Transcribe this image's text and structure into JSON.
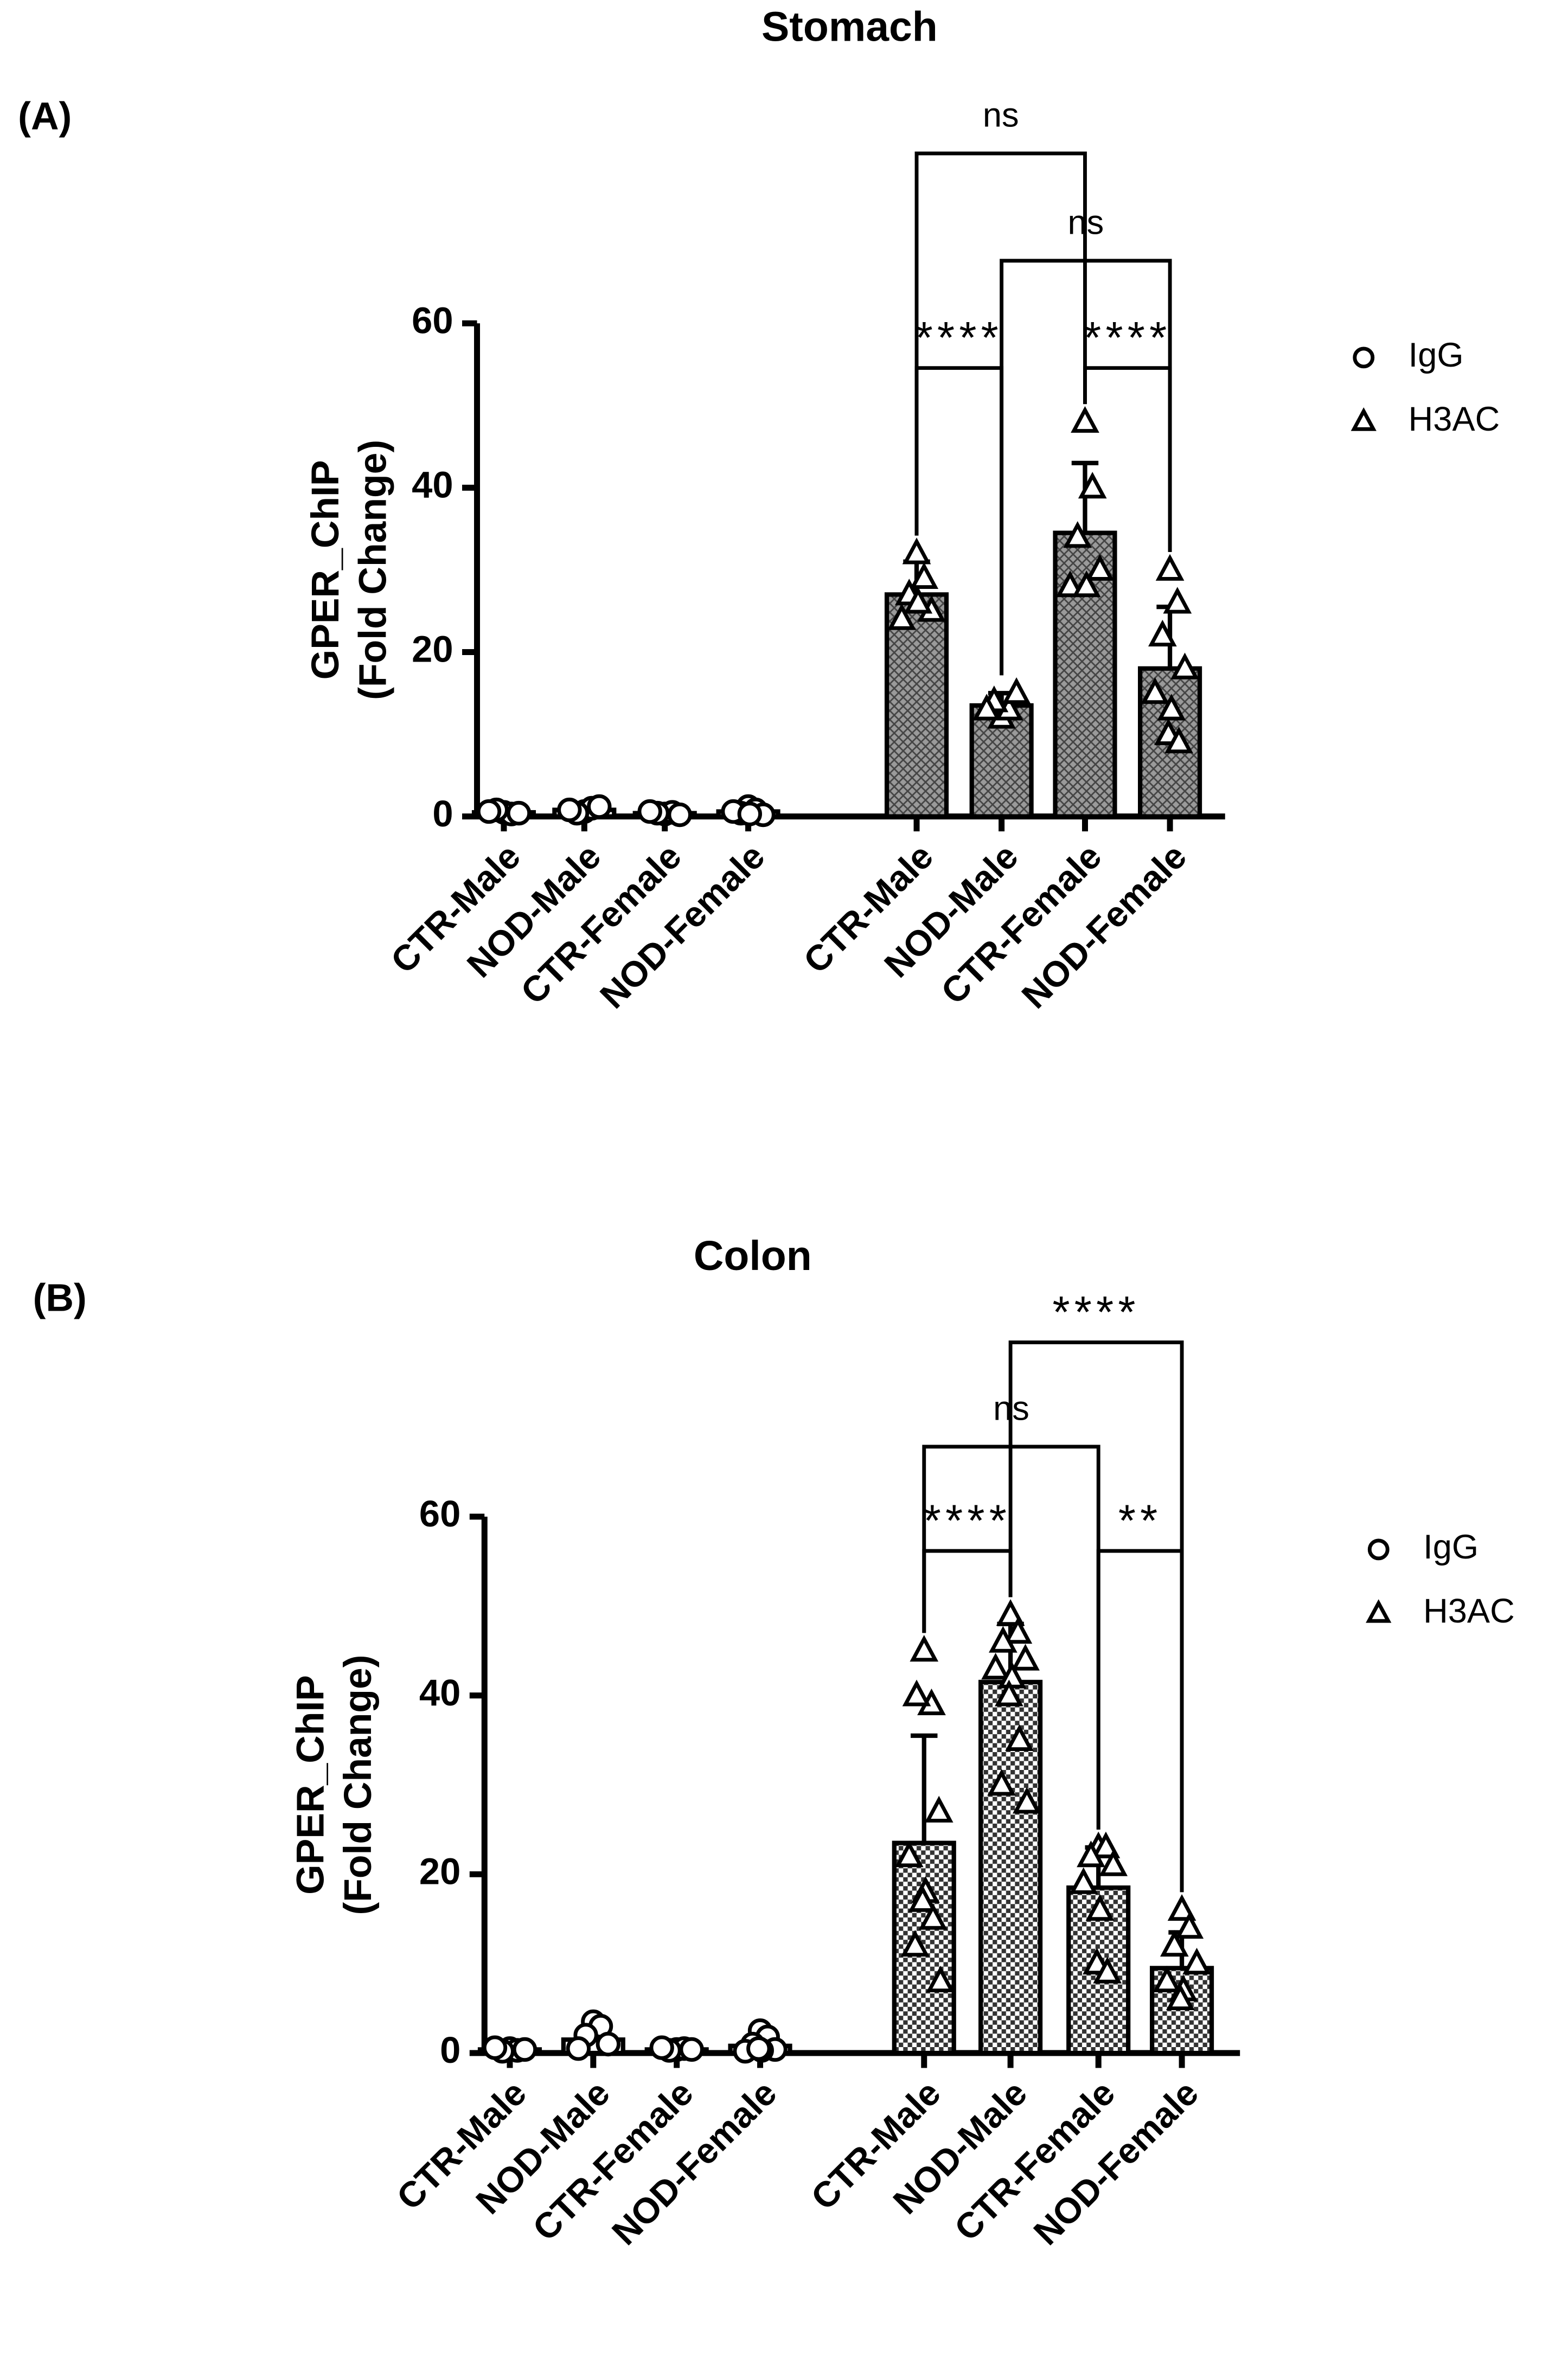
{
  "chart_data": [
    {
      "type": "bar",
      "panel": "(A)",
      "title": "Stomach",
      "ylabel": [
        "GPER_ChIP",
        "(Fold Change)"
      ],
      "categories": [
        "CTR-Male",
        "NOD-Male",
        "CTR-Female",
        "NOD-Female",
        "CTR-Male",
        "NOD-Male",
        "CTR-Female",
        "NOD-Female"
      ],
      "ylim": [
        0,
        60
      ],
      "yticks": [
        0,
        20,
        40,
        60
      ],
      "series": [
        {
          "name": "IgG",
          "marker": "circle",
          "color": "#ffffff",
          "values": [
            0.5,
            0.8,
            0.4,
            0.6,
            null,
            null,
            null,
            null
          ],
          "errors": [
            null,
            null,
            null,
            null,
            null,
            null,
            null,
            null
          ],
          "points": [
            [
              0.5,
              0.3,
              0.8,
              0.4,
              0.6
            ],
            [
              0.6,
              1.0,
              0.4,
              1.2,
              0.8
            ],
            [
              0.3,
              0.5,
              0.4,
              0.2,
              0.6
            ],
            [
              1.2,
              0.8,
              0.4,
              0.2,
              0.6,
              0.3
            ],
            [],
            [],
            [],
            []
          ]
        },
        {
          "name": "H3AC",
          "marker": "triangle",
          "color": "#9a9a9a",
          "values": [
            null,
            null,
            null,
            null,
            27,
            13.5,
            34.5,
            18
          ],
          "errors": [
            null,
            null,
            null,
            null,
            4,
            1.5,
            8.5,
            7.5
          ],
          "points": [
            [],
            [],
            [],
            [],
            [
              32,
              29,
              27,
              25,
              24,
              26
            ],
            [
              12,
              13,
              14,
              15,
              13
            ],
            [
              48,
              40,
              34,
              30,
              28,
              28
            ],
            [
              30,
              26,
              22,
              18,
              15,
              13,
              10,
              9
            ]
          ]
        }
      ],
      "significance": [
        {
          "label": "****",
          "from": 4,
          "to": 5
        },
        {
          "label": "****",
          "from": 6,
          "to": 7
        },
        {
          "label": "ns",
          "from": 5,
          "to": 7
        },
        {
          "label": "ns",
          "from": 4,
          "to": 6
        }
      ]
    },
    {
      "type": "bar",
      "panel": "(B)",
      "title": "Colon",
      "ylabel": [
        "GPER_ChIP",
        "(Fold Change)"
      ],
      "categories": [
        "CTR-Male",
        "NOD-Male",
        "CTR-Female",
        "NOD-Female",
        "CTR-Male",
        "NOD-Male",
        "CTR-Female",
        "NOD-Female"
      ],
      "ylim": [
        0,
        60
      ],
      "yticks": [
        0,
        20,
        40,
        60
      ],
      "series": [
        {
          "name": "IgG",
          "marker": "circle",
          "color": "#ffffff",
          "values": [
            0.4,
            1.5,
            0.4,
            0.8,
            null,
            null,
            null,
            null
          ],
          "errors": [
            null,
            null,
            null,
            null,
            null,
            null,
            null,
            null
          ],
          "points": [
            [
              0.5,
              0.3,
              0.2,
              0.4,
              0.6
            ],
            [
              3.5,
              3,
              2,
              1,
              0.5
            ],
            [
              0.4,
              0.5,
              0.3,
              0.4,
              0.6
            ],
            [
              2.5,
              1.8,
              1,
              0.4,
              0.2,
              0.3,
              0.5
            ]
          ]
        },
        {
          "name": "H3AC",
          "marker": "triangle",
          "color": "#9a9a9a",
          "values": [
            null,
            null,
            null,
            null,
            23.5,
            41.5,
            18.5,
            9.5
          ],
          "errors": [
            null,
            null,
            null,
            null,
            12,
            6.5,
            4.5,
            4
          ],
          "points": [
            [],
            [],
            [],
            [],
            [
              45,
              39,
              40,
              27,
              22,
              18,
              17,
              15,
              12,
              8
            ],
            [
              49,
              47,
              46,
              44,
              43,
              42,
              40,
              35,
              30,
              28
            ],
            [
              23,
              23,
              22,
              21,
              19,
              16,
              10,
              9
            ],
            [
              16,
              14,
              12,
              10,
              8,
              7,
              6
            ]
          ]
        }
      ],
      "significance": [
        {
          "label": "****",
          "from": 4,
          "to": 5
        },
        {
          "label": "**",
          "from": 6,
          "to": 7
        },
        {
          "label": "ns",
          "from": 4,
          "to": 6
        },
        {
          "label": "****",
          "from": 5,
          "to": 7
        }
      ]
    }
  ]
}
